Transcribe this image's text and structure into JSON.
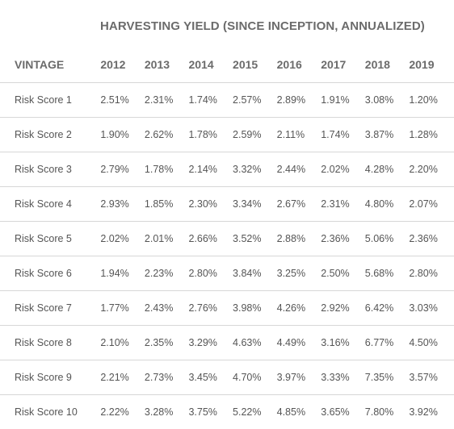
{
  "table": {
    "super_header": "HARVESTING YIELD (SINCE INCEPTION, ANNUALIZED)",
    "row_header": "VINTAGE",
    "columns": [
      "2012",
      "2013",
      "2014",
      "2015",
      "2016",
      "2017",
      "2018",
      "2019"
    ],
    "rows": [
      {
        "label": "Risk Score 1",
        "values": [
          "2.51%",
          "2.31%",
          "1.74%",
          "2.57%",
          "2.89%",
          "1.91%",
          "3.08%",
          "1.20%"
        ]
      },
      {
        "label": "Risk Score 2",
        "values": [
          "1.90%",
          "2.62%",
          "1.78%",
          "2.59%",
          "2.11%",
          "1.74%",
          "3.87%",
          "1.28%"
        ]
      },
      {
        "label": "Risk Score 3",
        "values": [
          "2.79%",
          "1.78%",
          "2.14%",
          "3.32%",
          "2.44%",
          "2.02%",
          "4.28%",
          "2.20%"
        ]
      },
      {
        "label": "Risk Score 4",
        "values": [
          "2.93%",
          "1.85%",
          "2.30%",
          "3.34%",
          "2.67%",
          "2.31%",
          "4.80%",
          "2.07%"
        ]
      },
      {
        "label": "Risk Score 5",
        "values": [
          "2.02%",
          "2.01%",
          "2.66%",
          "3.52%",
          "2.88%",
          "2.36%",
          "5.06%",
          "2.36%"
        ]
      },
      {
        "label": "Risk Score 6",
        "values": [
          "1.94%",
          "2.23%",
          "2.80%",
          "3.84%",
          "3.25%",
          "2.50%",
          "5.68%",
          "2.80%"
        ]
      },
      {
        "label": "Risk Score 7",
        "values": [
          "1.77%",
          "2.43%",
          "2.76%",
          "3.98%",
          "4.26%",
          "2.92%",
          "6.42%",
          "3.03%"
        ]
      },
      {
        "label": "Risk Score 8",
        "values": [
          "2.10%",
          "2.35%",
          "3.29%",
          "4.63%",
          "4.49%",
          "3.16%",
          "6.77%",
          "4.50%"
        ]
      },
      {
        "label": "Risk Score 9",
        "values": [
          "2.21%",
          "2.73%",
          "3.45%",
          "4.70%",
          "3.97%",
          "3.33%",
          "7.35%",
          "3.57%"
        ]
      },
      {
        "label": "Risk Score 10",
        "values": [
          "2.22%",
          "3.28%",
          "3.75%",
          "5.22%",
          "4.85%",
          "3.65%",
          "7.80%",
          "3.92%"
        ]
      }
    ]
  },
  "chart_data": {
    "type": "table",
    "title": "HARVESTING YIELD (SINCE INCEPTION, ANNUALIZED)",
    "row_header": "VINTAGE",
    "columns": [
      "2012",
      "2013",
      "2014",
      "2015",
      "2016",
      "2017",
      "2018",
      "2019"
    ],
    "rows": [
      "Risk Score 1",
      "Risk Score 2",
      "Risk Score 3",
      "Risk Score 4",
      "Risk Score 5",
      "Risk Score 6",
      "Risk Score 7",
      "Risk Score 8",
      "Risk Score 9",
      "Risk Score 10"
    ],
    "unit": "%",
    "values": [
      [
        2.51,
        2.31,
        1.74,
        2.57,
        2.89,
        1.91,
        3.08,
        1.2
      ],
      [
        1.9,
        2.62,
        1.78,
        2.59,
        2.11,
        1.74,
        3.87,
        1.28
      ],
      [
        2.79,
        1.78,
        2.14,
        3.32,
        2.44,
        2.02,
        4.28,
        2.2
      ],
      [
        2.93,
        1.85,
        2.3,
        3.34,
        2.67,
        2.31,
        4.8,
        2.07
      ],
      [
        2.02,
        2.01,
        2.66,
        3.52,
        2.88,
        2.36,
        5.06,
        2.36
      ],
      [
        1.94,
        2.23,
        2.8,
        3.84,
        3.25,
        2.5,
        5.68,
        2.8
      ],
      [
        1.77,
        2.43,
        2.76,
        3.98,
        4.26,
        2.92,
        6.42,
        3.03
      ],
      [
        2.1,
        2.35,
        3.29,
        4.63,
        4.49,
        3.16,
        6.77,
        4.5
      ],
      [
        2.21,
        2.73,
        3.45,
        4.7,
        3.97,
        3.33,
        7.35,
        3.57
      ],
      [
        2.22,
        3.28,
        3.75,
        5.22,
        4.85,
        3.65,
        7.8,
        3.92
      ]
    ]
  }
}
